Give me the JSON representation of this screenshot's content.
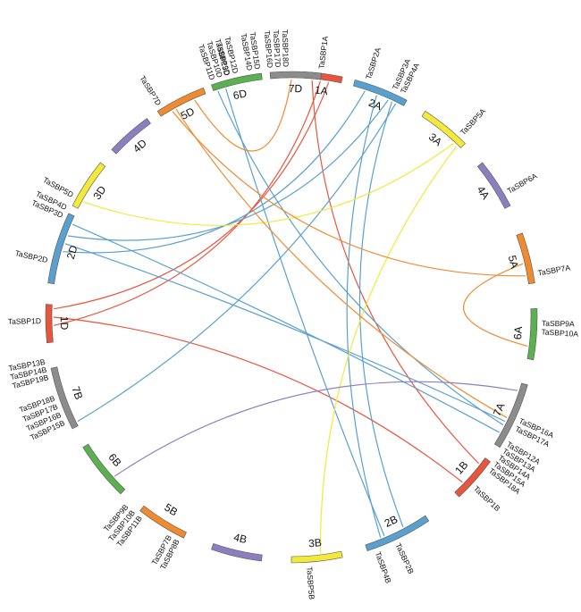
{
  "chart_data": {
    "type": "circos",
    "colors": {
      "1": "#e8553d",
      "2": "#5aa0cf",
      "3": "#f2e93a",
      "4": "#8c7fbf",
      "5": "#f08a30",
      "6": "#5bb04f",
      "7": "#8c8c8c"
    },
    "chromosomes": [
      {
        "id": "1A",
        "label": "1A",
        "group": "1",
        "start": 3,
        "end": 12
      },
      {
        "id": "2A",
        "label": "2A",
        "group": "2",
        "start": 15,
        "end": 28
      },
      {
        "id": "3A",
        "label": "3A",
        "group": "3",
        "start": 33,
        "end": 45
      },
      {
        "id": "4A",
        "label": "4A",
        "group": "4",
        "start": 51,
        "end": 63
      },
      {
        "id": "5A",
        "label": "5A",
        "group": "5",
        "start": 70,
        "end": 82
      },
      {
        "id": "6A",
        "label": "6A",
        "group": "6",
        "start": 88,
        "end": 100
      },
      {
        "id": "7A",
        "label": "7A",
        "group": "7",
        "start": 106,
        "end": 122
      },
      {
        "id": "1B",
        "label": "1B",
        "group": "1",
        "start": 126,
        "end": 137
      },
      {
        "id": "2B",
        "label": "2B",
        "group": "2",
        "start": 146,
        "end": 162
      },
      {
        "id": "3B",
        "label": "3B",
        "group": "3",
        "start": 168,
        "end": 180
      },
      {
        "id": "4B",
        "label": "4B",
        "group": "4",
        "start": 187,
        "end": 199
      },
      {
        "id": "5B",
        "label": "5B",
        "group": "5",
        "start": 206,
        "end": 218
      },
      {
        "id": "6B",
        "label": "6B",
        "group": "6",
        "start": 224,
        "end": 238
      },
      {
        "id": "7B",
        "label": "7B",
        "group": "7",
        "start": 243,
        "end": 258
      },
      {
        "id": "1D",
        "label": "1D",
        "group": "1",
        "start": 264,
        "end": 273
      },
      {
        "id": "2D",
        "label": "2D",
        "group": "2",
        "start": 278,
        "end": 295
      },
      {
        "id": "3D",
        "label": "3D",
        "group": "3",
        "start": 297,
        "end": 309
      },
      {
        "id": "4D",
        "label": "4D",
        "group": "4",
        "start": 313,
        "end": 324
      },
      {
        "id": "5D",
        "label": "5D",
        "group": "5",
        "start": 327,
        "end": 339
      },
      {
        "id": "6D",
        "label": "6D",
        "group": "6",
        "start": 341,
        "end": 353
      },
      {
        "id": "7D",
        "label": "7D",
        "group": "7",
        "start": 355,
        "end": 367
      }
    ],
    "genes": [
      {
        "label": "TaSBP1A",
        "angle": 7
      },
      {
        "label": "TaSBP2A",
        "angle": 18
      },
      {
        "label": "TaSBP3A",
        "angle": 24.5
      },
      {
        "label": "TaSBP4A",
        "angle": 26.5
      },
      {
        "label": "TaSBP5A",
        "angle": 43
      },
      {
        "label": "TaSBP6A",
        "angle": 60
      },
      {
        "label": "TaSBP7A",
        "angle": 80
      },
      {
        "label": "TaSBP9A",
        "angle": 91.5
      },
      {
        "label": "TaSBP10A",
        "angle": 93.5
      },
      {
        "label": "TaSBP16A",
        "angle": 114.5
      },
      {
        "label": "TaSBP17A",
        "angle": 116.5
      },
      {
        "label": "TaSBP12A",
        "angle": 120.5
      },
      {
        "label": "TaSBP13A",
        "angle": 122.3
      },
      {
        "label": "TaSBP14A",
        "angle": 124.1
      },
      {
        "label": "TaSBP15A",
        "angle": 125.9
      },
      {
        "label": "TaSBP18A",
        "angle": 127.7
      },
      {
        "label": "TaSBP1B",
        "angle": 133
      },
      {
        "label": "TaSBP2B",
        "angle": 155
      },
      {
        "label": "TaSBP4B",
        "angle": 160
      },
      {
        "label": "TaSBP5B",
        "angle": 176
      },
      {
        "label": "TaSBP8B",
        "angle": 207
      },
      {
        "label": "TaSBP7B",
        "angle": 209
      },
      {
        "label": "TaSBP11B",
        "angle": 217
      },
      {
        "label": "TaSBP10B",
        "angle": 219
      },
      {
        "label": "TaSBP9B",
        "angle": 221
      },
      {
        "label": "TaSBP15B",
        "angle": 245
      },
      {
        "label": "TaSBP16B",
        "angle": 247
      },
      {
        "label": "TaSBP17B",
        "angle": 249
      },
      {
        "label": "TaSBP18B",
        "angle": 251
      },
      {
        "label": "TaSBP19B",
        "angle": 256
      },
      {
        "label": "TaSBP14B",
        "angle": 257.8
      },
      {
        "label": "TaSBP13B",
        "angle": 259.6
      },
      {
        "label": "TaSBP1D",
        "angle": 269
      },
      {
        "label": "TaSBP2D",
        "angle": 283
      },
      {
        "label": "TaSBP3D",
        "angle": 293.8
      },
      {
        "label": "TaSBP4D",
        "angle": 295.8
      },
      {
        "label": "TaSBP5D",
        "angle": 299
      },
      {
        "label": "TaSBP7D",
        "angle": 328
      },
      {
        "label": "TaSBP11D",
        "angle": 341.5
      },
      {
        "label": "TaSBP10D",
        "angle": 343.3
      },
      {
        "label": "TaSBP9D",
        "angle": 345.1
      },
      {
        "label": "TaSBP13D",
        "angle": 345
      },
      {
        "label": "TaSBP12D",
        "angle": 347
      },
      {
        "label": "TaSBP14D",
        "angle": 350.3
      },
      {
        "label": "TaSBP15D",
        "angle": 352.1
      },
      {
        "label": "TaSBP16D",
        "angle": 355
      },
      {
        "label": "TaSBP17D",
        "angle": 356.8
      },
      {
        "label": "TaSBP18D",
        "angle": 358.6
      }
    ],
    "links": [
      {
        "from": 9,
        "to": 272,
        "color": "#e8553d"
      },
      {
        "from": 7,
        "to": 268,
        "color": "#e8553d"
      },
      {
        "from": 5,
        "to": 128,
        "color": "#e8553d"
      },
      {
        "from": 270,
        "to": 134,
        "color": "#e8553d"
      },
      {
        "from": 18,
        "to": 286,
        "color": "#5aa0cf"
      },
      {
        "from": 24,
        "to": 290,
        "color": "#5aa0cf"
      },
      {
        "from": 25,
        "to": 152,
        "color": "#5aa0cf"
      },
      {
        "from": 26,
        "to": 244,
        "color": "#5aa0cf"
      },
      {
        "from": 21,
        "to": 158,
        "color": "#5aa0cf"
      },
      {
        "from": 293,
        "to": 119,
        "color": "#5aa0cf"
      },
      {
        "from": 288,
        "to": 116,
        "color": "#5aa0cf"
      },
      {
        "from": 344,
        "to": 157,
        "color": "#5aa0cf"
      },
      {
        "from": 342,
        "to": 117,
        "color": "#5aa0cf"
      },
      {
        "from": 43,
        "to": 299,
        "color": "#f2e93a"
      },
      {
        "from": 44,
        "to": 173,
        "color": "#f2e93a"
      },
      {
        "from": 77,
        "to": 97,
        "color": "#f08a30"
      },
      {
        "from": 331,
        "to": 115,
        "color": "#f08a30"
      },
      {
        "from": 330,
        "to": 80,
        "color": "#f08a30"
      },
      {
        "from": 360,
        "to": 336,
        "color": "#f08a30"
      },
      {
        "from": 108,
        "to": 228,
        "color": "#8c7fbf"
      }
    ]
  }
}
